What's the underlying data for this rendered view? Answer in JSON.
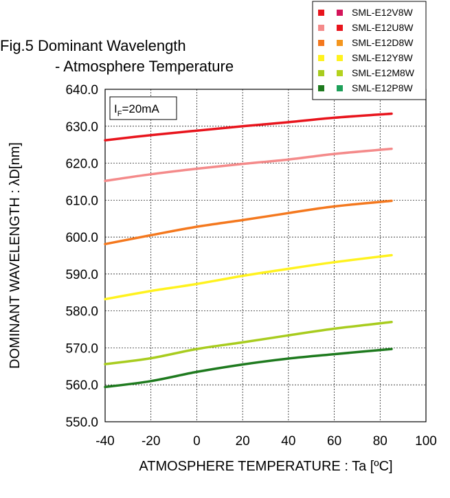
{
  "chart_data": {
    "type": "line",
    "title_line1": "Fig.5 Dominant Wavelength",
    "title_line2": "- Atmosphere Temperature",
    "xlabel": "ATMOSPHERE TEMPERATURE : Ta [ºC]",
    "ylabel": "DOMINANT WAVELENGTH : λD[nm]",
    "annotation": {
      "main": "I",
      "sub": "F",
      "rest": "=20mA"
    },
    "xlim": [
      -40,
      100
    ],
    "ylim": [
      550,
      640
    ],
    "x_ticks": [
      "-40",
      "-20",
      "0",
      "20",
      "40",
      "60",
      "80",
      "100"
    ],
    "y_ticks": [
      "550.0",
      "560.0",
      "570.0",
      "580.0",
      "590.0",
      "600.0",
      "610.0",
      "620.0",
      "630.0",
      "640.0"
    ],
    "grid": true,
    "legend_position": "top-right",
    "x": [
      -40,
      -20,
      0,
      20,
      40,
      60,
      85
    ],
    "series": [
      {
        "name": "SML-E12V8W",
        "color": "#e8141c",
        "marker2_color": "#d4145a",
        "values": [
          626.2,
          627.6,
          628.8,
          630.0,
          631.1,
          632.3,
          633.4
        ]
      },
      {
        "name": "SML-E12U8W",
        "color": "#f48a8a",
        "marker2_color": "#e8141c",
        "values": [
          615.2,
          617.0,
          618.5,
          619.8,
          621.0,
          622.5,
          623.9
        ]
      },
      {
        "name": "SML-E12D8W",
        "color": "#f4781e",
        "marker2_color": "#f4961e",
        "values": [
          598.1,
          600.5,
          602.8,
          604.6,
          606.5,
          608.3,
          609.8
        ]
      },
      {
        "name": "SML-E12Y8W",
        "color": "#fff21e",
        "marker2_color": "#fff21e",
        "values": [
          583.2,
          585.4,
          587.3,
          589.5,
          591.4,
          593.2,
          595.1
        ]
      },
      {
        "name": "SML-E12M8W",
        "color": "#a8cc1e",
        "marker2_color": "#b4d21e",
        "values": [
          565.6,
          567.2,
          569.7,
          571.5,
          573.4,
          575.2,
          577.0
        ]
      },
      {
        "name": "SML-E12P8W",
        "color": "#1e7a1e",
        "marker2_color": "#1ea05a",
        "values": [
          559.4,
          561.0,
          563.5,
          565.5,
          567.1,
          568.3,
          569.7
        ]
      }
    ]
  }
}
